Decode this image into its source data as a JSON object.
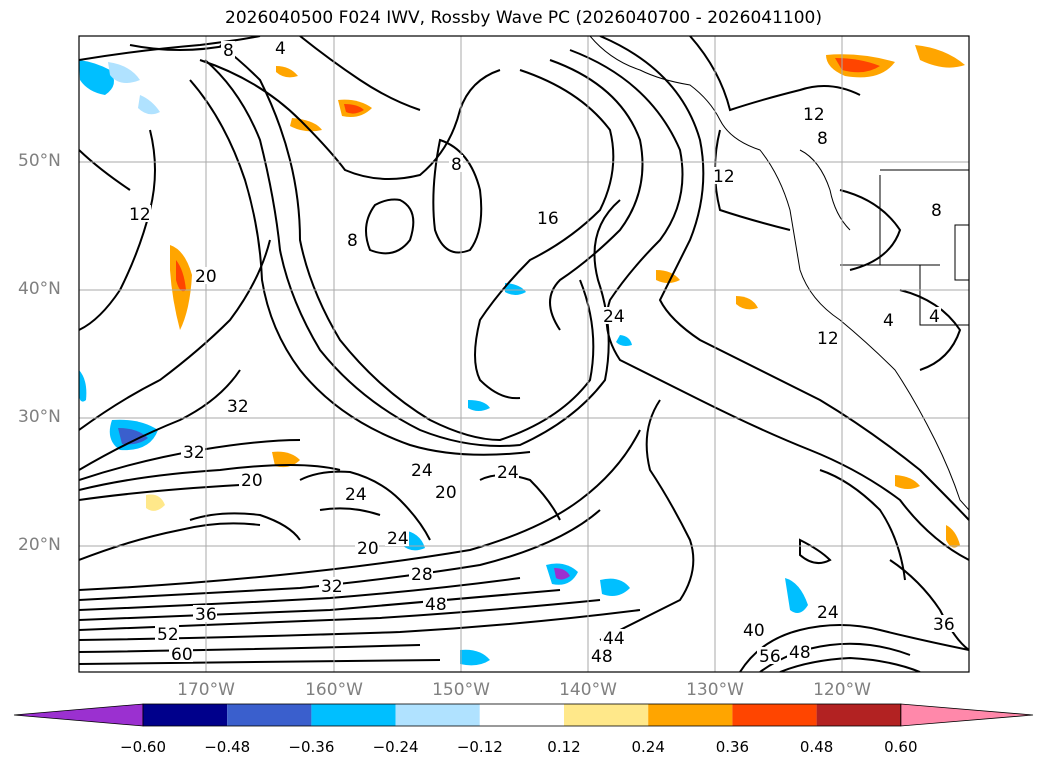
{
  "title": "2026040500 F024 IWV, Rossby Wave PC (2026040700 - 2026041100)",
  "lat_labels": [
    "50°N",
    "40°N",
    "30°N",
    "20°N"
  ],
  "lon_labels": [
    "170°W",
    "160°W",
    "150°W",
    "140°W",
    "130°W",
    "120°W"
  ],
  "colorbar": {
    "ticks": [
      "−0.60",
      "−0.48",
      "−0.36",
      "−0.24",
      "−0.12",
      "0.12",
      "0.24",
      "0.36",
      "0.48",
      "0.60"
    ],
    "colors": [
      "#9b30d0",
      "#00008b",
      "#3a5fcd",
      "#00bfff",
      "#b0e2ff",
      "#ffffff",
      "#ffe88a",
      "#ffa500",
      "#ff4500",
      "#b22222",
      "#ff88aa"
    ]
  },
  "contour_labels": [
    "8",
    "4",
    "8",
    "12",
    "8",
    "8",
    "12",
    "16",
    "20",
    "8",
    "4",
    "4",
    "12",
    "24",
    "32",
    "32",
    "24",
    "20",
    "24",
    "20",
    "24",
    "20",
    "24",
    "28",
    "32",
    "36",
    "48",
    "52",
    "60",
    "44",
    "48",
    "40",
    "56",
    "48",
    "24",
    "36",
    "12"
  ]
}
